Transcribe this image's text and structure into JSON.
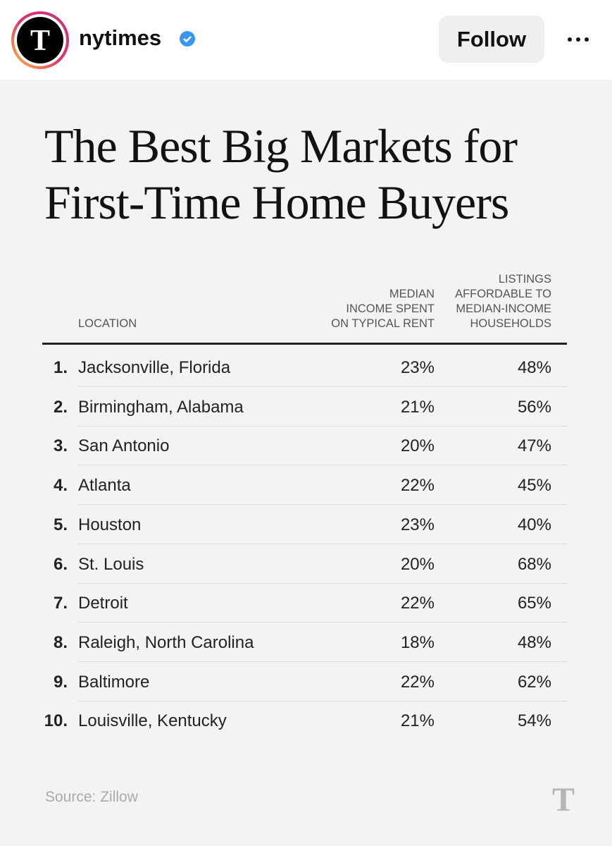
{
  "header": {
    "username": "nytimes",
    "follow": "Follow"
  },
  "post": {
    "title": [
      "The Best Big Markets for",
      "First-Time Home Buyers"
    ],
    "table": {
      "columns": [
        [
          "LOCATION"
        ],
        [
          "MEDIAN",
          "INCOME SPENT",
          "ON TYPICAL RENT"
        ],
        [
          "LISTINGS",
          "AFFORDABLE TO",
          "MEDIAN-INCOME",
          "HOUSEHOLDS"
        ]
      ],
      "rows": [
        [
          "1.",
          "Jacksonville, Florida",
          "23%",
          "48%"
        ],
        [
          "2.",
          "Birmingham, Alabama",
          "21%",
          "56%"
        ],
        [
          "3.",
          "San Antonio",
          "20%",
          "47%"
        ],
        [
          "4.",
          "Atlanta",
          "22%",
          "45%"
        ],
        [
          "5.",
          "Houston",
          "23%",
          "40%"
        ],
        [
          "6.",
          "St. Louis",
          "20%",
          "68%"
        ],
        [
          "7.",
          "Detroit",
          "22%",
          "65%"
        ],
        [
          "8.",
          "Raleigh, North Carolina",
          "18%",
          "48%"
        ],
        [
          "9.",
          "Baltimore",
          "22%",
          "62%"
        ],
        [
          "10.",
          "Louisville, Kentucky",
          "21%",
          "54%"
        ]
      ]
    },
    "source": "Source: Zillow"
  }
}
